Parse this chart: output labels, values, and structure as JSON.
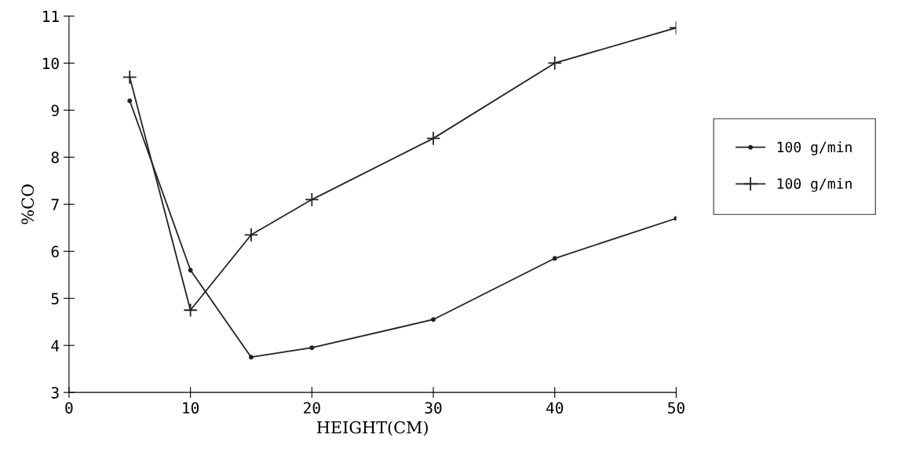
{
  "chart_data": {
    "type": "line",
    "xlabel": "HEIGHT(CM)",
    "ylabel": "%CO",
    "x": [
      5,
      10,
      15,
      20,
      30,
      40,
      50
    ],
    "series": [
      {
        "name": "100 g/min",
        "color": "#222222",
        "marker": "circle",
        "values": [
          9.2,
          5.6,
          3.75,
          3.95,
          4.55,
          5.85,
          6.7
        ]
      },
      {
        "name": "100 g/min",
        "color": "#222222",
        "marker": "cross",
        "values": [
          9.7,
          4.75,
          6.35,
          7.1,
          8.4,
          10.0,
          10.75
        ]
      }
    ],
    "xlim": [
      0,
      50
    ],
    "xticks": [
      0,
      10,
      20,
      30,
      40,
      50
    ],
    "ylim": [
      3,
      11
    ],
    "yticks": [
      3,
      4,
      5,
      6,
      7,
      8,
      9,
      10,
      11
    ],
    "grid": false,
    "legend": "right",
    "line_style": "solid"
  }
}
